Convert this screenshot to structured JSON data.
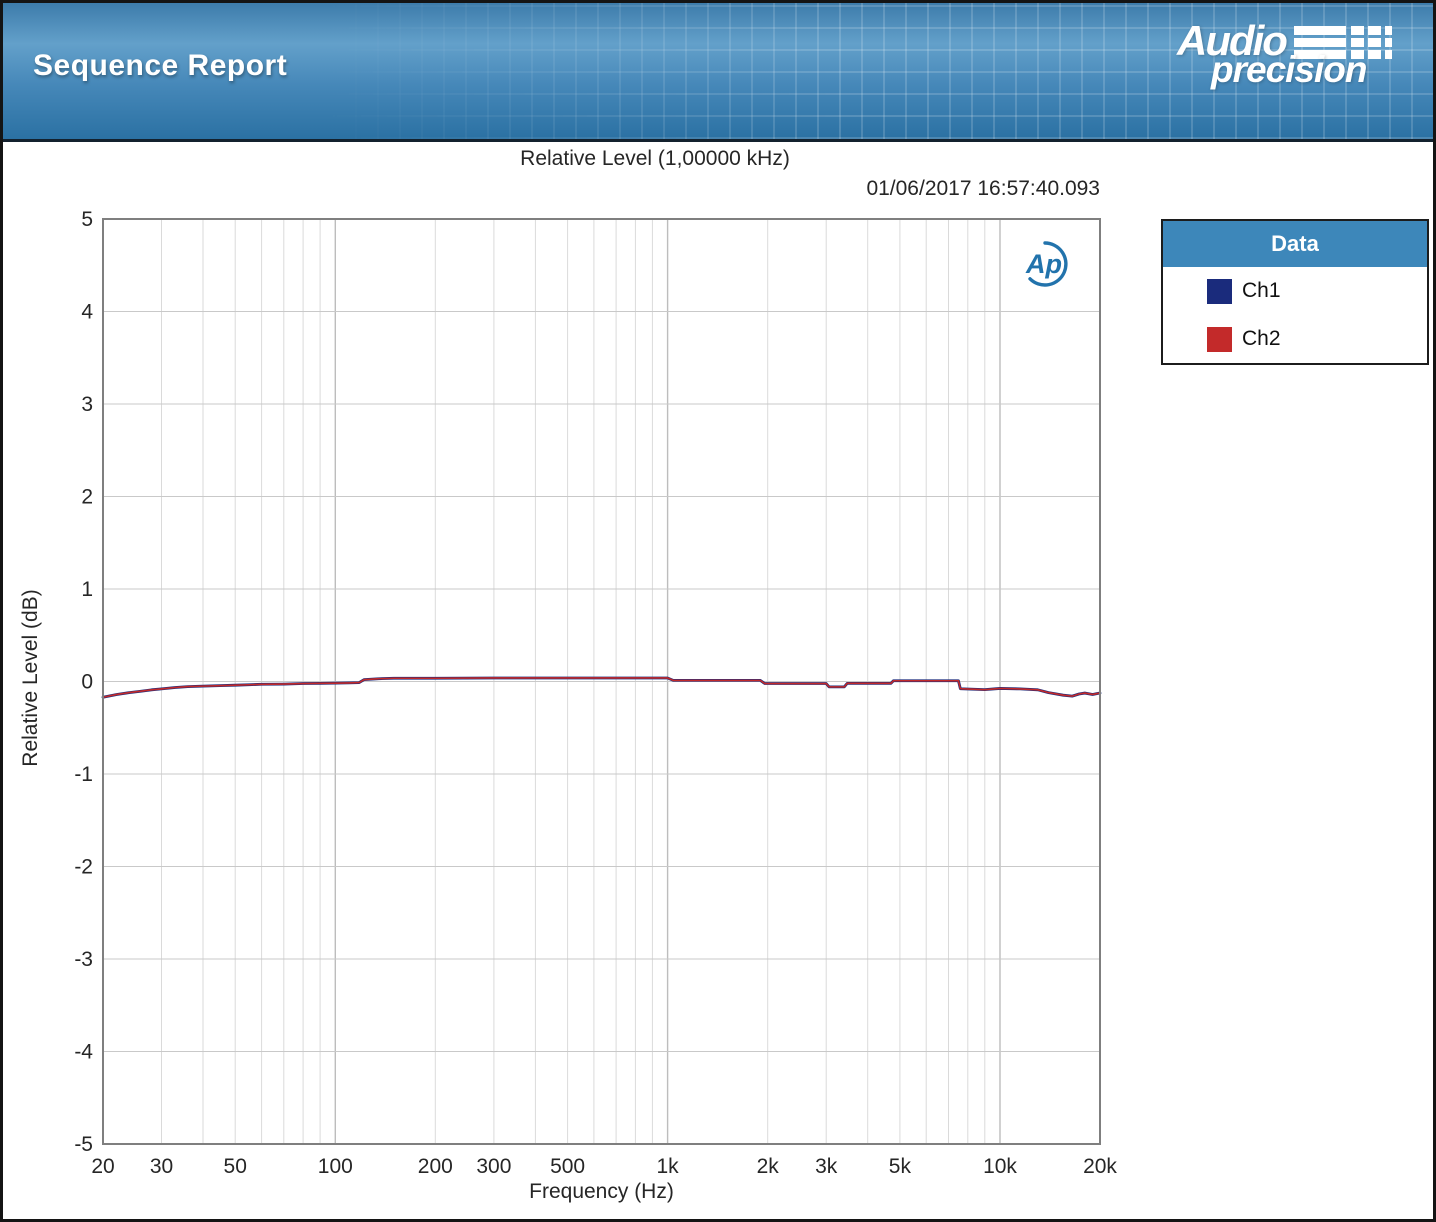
{
  "header": {
    "title": "Sequence Report",
    "brand": {
      "line1": "Audio",
      "line2": "precision"
    }
  },
  "chart": {
    "title": "Relative Level (1,00000 kHz)",
    "timestamp": "01/06/2017 16:57:40.093",
    "xlabel": "Frequency (Hz)",
    "ylabel": "Relative Level (dB)"
  },
  "legend": {
    "title": "Data",
    "series": [
      {
        "label": "Ch1",
        "color": "#1a2b7c"
      },
      {
        "label": "Ch2",
        "color": "#c32a2a"
      }
    ]
  },
  "colors": {
    "header_blue": "#3d7cab",
    "legend_header_blue": "#3d87ba",
    "ch1": "#1a2b7c",
    "ch2": "#c32a2a",
    "plot_border": "#7f7f7f",
    "grid_minor": "#dadada",
    "grid_major": "#bdbdbd",
    "ap_logo_blue": "#2273ac"
  },
  "chart_data": {
    "type": "line",
    "title": "Relative Level (1,00000 kHz)",
    "timestamp": "01/06/2017 16:57:40.093",
    "xlabel": "Frequency (Hz)",
    "ylabel": "Relative Level (dB)",
    "x_scale": "log",
    "xlim": [
      20,
      20000
    ],
    "ylim": [
      -5,
      5
    ],
    "grid": true,
    "legend_position": "outside-right",
    "y_ticks": [
      5,
      4,
      3,
      2,
      1,
      0,
      -1,
      -2,
      -3,
      -4,
      -5
    ],
    "x_ticks": [
      {
        "v": 20,
        "l": "20"
      },
      {
        "v": 30,
        "l": "30"
      },
      {
        "v": 50,
        "l": "50"
      },
      {
        "v": 100,
        "l": "100"
      },
      {
        "v": 200,
        "l": "200"
      },
      {
        "v": 300,
        "l": "300"
      },
      {
        "v": 500,
        "l": "500"
      },
      {
        "v": 1000,
        "l": "1k"
      },
      {
        "v": 2000,
        "l": "2k"
      },
      {
        "v": 3000,
        "l": "3k"
      },
      {
        "v": 5000,
        "l": "5k"
      },
      {
        "v": 10000,
        "l": "10k"
      },
      {
        "v": 20000,
        "l": "20k"
      }
    ],
    "x_minor_gridlines": [
      30,
      40,
      50,
      60,
      70,
      80,
      90,
      200,
      300,
      400,
      500,
      600,
      700,
      800,
      900,
      2000,
      3000,
      4000,
      5000,
      6000,
      7000,
      8000,
      9000
    ],
    "x_major_gridlines": [
      100,
      1000,
      10000
    ],
    "series": [
      {
        "name": "Ch1",
        "color": "#1a2b7c",
        "points": [
          [
            20,
            -0.17
          ],
          [
            22,
            -0.14
          ],
          [
            24,
            -0.12
          ],
          [
            26,
            -0.105
          ],
          [
            28,
            -0.09
          ],
          [
            30,
            -0.08
          ],
          [
            33,
            -0.065
          ],
          [
            36,
            -0.055
          ],
          [
            40,
            -0.05
          ],
          [
            45,
            -0.045
          ],
          [
            50,
            -0.04
          ],
          [
            55,
            -0.035
          ],
          [
            60,
            -0.03
          ],
          [
            70,
            -0.028
          ],
          [
            80,
            -0.022
          ],
          [
            90,
            -0.02
          ],
          [
            100,
            -0.018
          ],
          [
            110,
            -0.015
          ],
          [
            118,
            -0.012
          ],
          [
            122,
            0.02
          ],
          [
            135,
            0.03
          ],
          [
            150,
            0.035
          ],
          [
            200,
            0.035
          ],
          [
            300,
            0.038
          ],
          [
            500,
            0.038
          ],
          [
            700,
            0.038
          ],
          [
            1000,
            0.038
          ],
          [
            1040,
            0.012
          ],
          [
            1500,
            0.012
          ],
          [
            1900,
            0.012
          ],
          [
            1960,
            -0.022
          ],
          [
            2500,
            -0.022
          ],
          [
            3000,
            -0.022
          ],
          [
            3060,
            -0.058
          ],
          [
            3400,
            -0.058
          ],
          [
            3470,
            -0.02
          ],
          [
            4000,
            -0.02
          ],
          [
            4700,
            -0.02
          ],
          [
            4780,
            0.008
          ],
          [
            5500,
            0.008
          ],
          [
            6500,
            0.008
          ],
          [
            7500,
            0.008
          ],
          [
            7600,
            -0.078
          ],
          [
            9000,
            -0.088
          ],
          [
            10000,
            -0.075
          ],
          [
            11500,
            -0.08
          ],
          [
            13000,
            -0.09
          ],
          [
            14000,
            -0.12
          ],
          [
            15500,
            -0.148
          ],
          [
            16500,
            -0.158
          ],
          [
            17300,
            -0.135
          ],
          [
            18000,
            -0.125
          ],
          [
            19000,
            -0.14
          ],
          [
            20000,
            -0.125
          ]
        ]
      },
      {
        "name": "Ch2",
        "color": "#c32a2a",
        "points": [
          [
            20,
            -0.17
          ],
          [
            22,
            -0.14
          ],
          [
            24,
            -0.12
          ],
          [
            26,
            -0.105
          ],
          [
            28,
            -0.09
          ],
          [
            30,
            -0.08
          ],
          [
            33,
            -0.065
          ],
          [
            36,
            -0.055
          ],
          [
            40,
            -0.05
          ],
          [
            45,
            -0.045
          ],
          [
            50,
            -0.04
          ],
          [
            55,
            -0.035
          ],
          [
            60,
            -0.03
          ],
          [
            70,
            -0.028
          ],
          [
            80,
            -0.022
          ],
          [
            90,
            -0.02
          ],
          [
            100,
            -0.018
          ],
          [
            110,
            -0.015
          ],
          [
            118,
            -0.012
          ],
          [
            122,
            0.02
          ],
          [
            135,
            0.03
          ],
          [
            150,
            0.035
          ],
          [
            200,
            0.035
          ],
          [
            300,
            0.038
          ],
          [
            500,
            0.038
          ],
          [
            700,
            0.038
          ],
          [
            1000,
            0.038
          ],
          [
            1040,
            0.012
          ],
          [
            1500,
            0.012
          ],
          [
            1900,
            0.012
          ],
          [
            1960,
            -0.022
          ],
          [
            2500,
            -0.022
          ],
          [
            3000,
            -0.022
          ],
          [
            3060,
            -0.058
          ],
          [
            3400,
            -0.058
          ],
          [
            3470,
            -0.02
          ],
          [
            4000,
            -0.02
          ],
          [
            4700,
            -0.02
          ],
          [
            4780,
            0.008
          ],
          [
            5500,
            0.008
          ],
          [
            6500,
            0.008
          ],
          [
            7500,
            0.008
          ],
          [
            7600,
            -0.078
          ],
          [
            9000,
            -0.088
          ],
          [
            10000,
            -0.075
          ],
          [
            11500,
            -0.08
          ],
          [
            13000,
            -0.09
          ],
          [
            14000,
            -0.12
          ],
          [
            15500,
            -0.148
          ],
          [
            16500,
            -0.158
          ],
          [
            17300,
            -0.135
          ],
          [
            18000,
            -0.125
          ],
          [
            19000,
            -0.14
          ],
          [
            20000,
            -0.125
          ]
        ]
      }
    ]
  }
}
